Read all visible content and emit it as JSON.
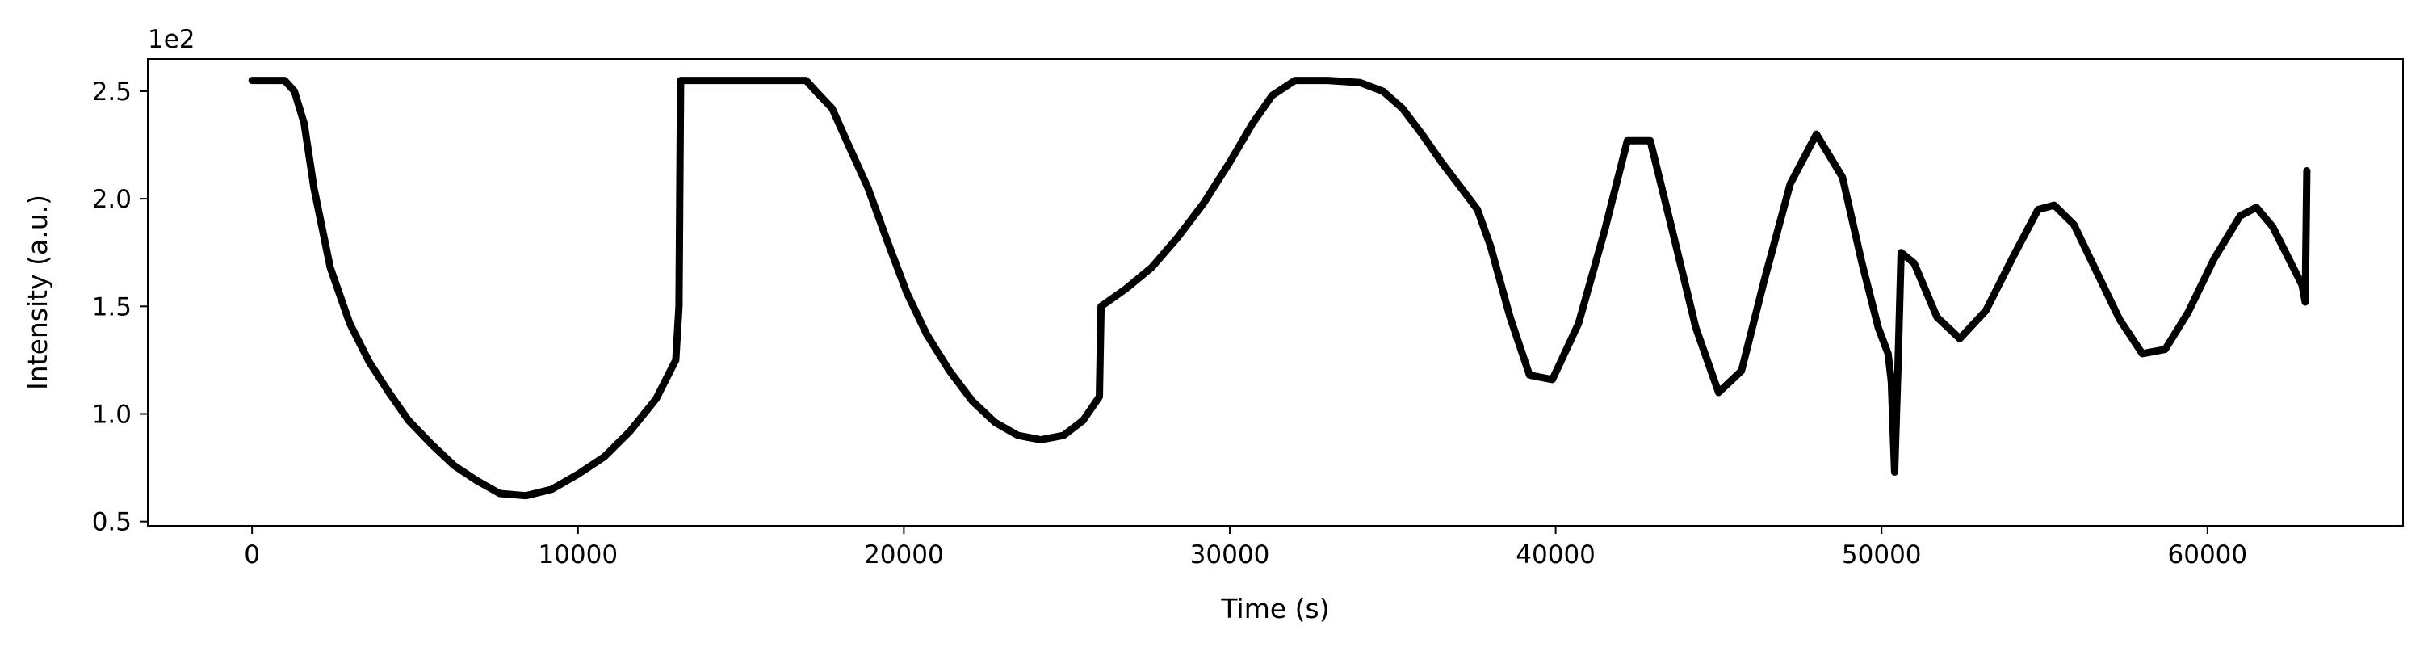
{
  "chart_data": {
    "type": "line",
    "title": "",
    "xlabel": "Time (s)",
    "ylabel": "Intensity (a.u.)",
    "y_offset_label": "1e2",
    "xlim": [
      -3200,
      66000
    ],
    "ylim": [
      0.48,
      2.65
    ],
    "x_ticks": [
      0,
      10000,
      20000,
      30000,
      40000,
      50000,
      60000
    ],
    "x_tick_labels": [
      "0",
      "10000",
      "20000",
      "30000",
      "40000",
      "50000",
      "60000"
    ],
    "y_ticks": [
      0.5,
      1.0,
      1.5,
      2.0,
      2.5
    ],
    "y_tick_labels": [
      "0.5",
      "1.0",
      "1.5",
      "2.0",
      "2.5"
    ],
    "grid": false,
    "legend": "none",
    "line_color": "#000000",
    "series": [
      {
        "x": [
          0,
          1000,
          1300,
          1600,
          1900,
          2400,
          3000,
          3600,
          4200,
          4800,
          5500,
          6200,
          6900,
          7600,
          8400,
          9200,
          10000,
          10800,
          11600,
          12400,
          13000,
          13100,
          13150,
          15000,
          17000,
          17300,
          17800,
          18300,
          18900,
          19500,
          20100,
          20700,
          21400,
          22100,
          22800,
          23500,
          24200,
          24900,
          25500,
          26000,
          26050,
          26800,
          27600,
          28400,
          29200,
          30000,
          30700,
          31300,
          32000,
          33000,
          34000,
          34700,
          35300,
          35900,
          36500,
          37100,
          37600,
          38000,
          38600,
          39200,
          39900,
          40700,
          41500,
          42200,
          42900,
          43600,
          44300,
          45000,
          45700,
          46400,
          47200,
          48000,
          48800,
          49400,
          49900,
          50200,
          50300,
          50400,
          50500,
          50600,
          51000,
          51700,
          52400,
          53200,
          54000,
          54800,
          55300,
          55900,
          56600,
          57300,
          58000,
          58700,
          59400,
          60200,
          61000,
          61500,
          62000,
          62500,
          62900,
          63000,
          63050
        ],
        "y": [
          2.55,
          2.55,
          2.5,
          2.35,
          2.05,
          1.68,
          1.42,
          1.24,
          1.1,
          0.97,
          0.86,
          0.76,
          0.69,
          0.63,
          0.62,
          0.65,
          0.72,
          0.8,
          0.92,
          1.07,
          1.25,
          1.5,
          2.55,
          2.55,
          2.55,
          2.5,
          2.42,
          2.25,
          2.05,
          1.8,
          1.56,
          1.37,
          1.2,
          1.06,
          0.96,
          0.9,
          0.88,
          0.9,
          0.97,
          1.08,
          1.5,
          1.58,
          1.68,
          1.82,
          1.98,
          2.17,
          2.35,
          2.48,
          2.55,
          2.55,
          2.54,
          2.5,
          2.42,
          2.3,
          2.17,
          2.05,
          1.95,
          1.78,
          1.45,
          1.18,
          1.16,
          1.42,
          1.85,
          2.27,
          2.27,
          1.84,
          1.4,
          1.1,
          1.2,
          1.62,
          2.07,
          2.3,
          2.1,
          1.7,
          1.4,
          1.28,
          1.15,
          0.73,
          1.2,
          1.75,
          1.7,
          1.45,
          1.35,
          1.48,
          1.72,
          1.95,
          1.97,
          1.88,
          1.66,
          1.44,
          1.28,
          1.3,
          1.47,
          1.72,
          1.92,
          1.96,
          1.87,
          1.72,
          1.6,
          1.52,
          2.13
        ]
      }
    ]
  }
}
